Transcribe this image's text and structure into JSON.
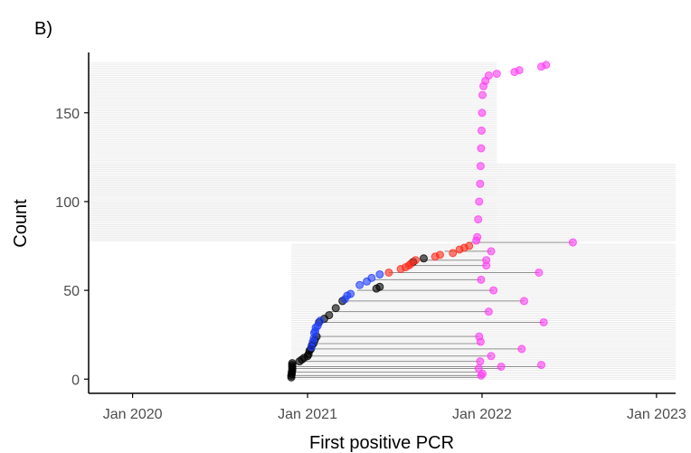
{
  "panel_label": "B)",
  "colors": {
    "black": "#000000",
    "blue": "#1f3fff",
    "red": "#ff2a1a",
    "magenta": "#ff3df4",
    "segment": "#8c8c8c",
    "band": "#ebebeb"
  },
  "chart_data": {
    "type": "scatter",
    "xlabel": "First positive PCR",
    "ylabel": "Count",
    "x_ticks": [
      "Jan 2020",
      "Jan 2021",
      "Jan 2022",
      "Jan 2023"
    ],
    "y_ticks": [
      "0",
      "50",
      "100",
      "150"
    ],
    "xlim": [
      "2019-10-01",
      "2023-02-10"
    ],
    "ylim": [
      -8,
      184
    ],
    "grid": false,
    "legend": "none",
    "series_segments": {
      "description_units": "count index y, from date -> to date (gray horizontal lines)",
      "segments": [
        {
          "y": 1,
          "x_from": "2020-11-28",
          "x_to": "2021-12-30"
        },
        {
          "y": 2,
          "x_from": "2020-11-29",
          "x_to": "2022-01-02"
        },
        {
          "y": 4,
          "x_from": "2020-11-30",
          "x_to": "2021-12-25"
        },
        {
          "y": 6,
          "x_from": "2020-11-30",
          "x_to": "2022-02-10"
        },
        {
          "y": 7,
          "x_from": "2020-11-30",
          "x_to": "2022-05-05"
        },
        {
          "y": 10,
          "x_from": "2020-12-20",
          "x_to": "2021-12-28"
        },
        {
          "y": 13,
          "x_from": "2021-01-01",
          "x_to": "2022-01-20"
        },
        {
          "y": 17,
          "x_from": "2021-01-08",
          "x_to": "2022-03-25"
        },
        {
          "y": 20,
          "x_from": "2021-01-10",
          "x_to": "2021-12-29"
        },
        {
          "y": 24,
          "x_from": "2021-01-13",
          "x_to": "2021-12-26"
        },
        {
          "y": 32,
          "x_from": "2021-01-20",
          "x_to": "2022-05-10"
        },
        {
          "y": 38,
          "x_from": "2021-02-15",
          "x_to": "2022-01-15"
        },
        {
          "y": 44,
          "x_from": "2021-03-15",
          "x_to": "2022-03-30"
        },
        {
          "y": 50,
          "x_from": "2021-04-15",
          "x_to": "2022-01-25"
        },
        {
          "y": 56,
          "x_from": "2021-05-20",
          "x_to": "2021-12-30"
        },
        {
          "y": 60,
          "x_from": "2021-06-20",
          "x_to": "2022-04-30"
        },
        {
          "y": 64,
          "x_from": "2021-07-25",
          "x_to": "2022-01-10"
        },
        {
          "y": 67,
          "x_from": "2021-08-25",
          "x_to": "2022-01-10"
        },
        {
          "y": 72,
          "x_from": "2021-10-15",
          "x_to": "2022-01-20"
        },
        {
          "y": 77,
          "x_from": "2021-12-01",
          "x_to": "2022-07-10"
        }
      ]
    },
    "series": [
      {
        "name": "",
        "color": "black",
        "x": [
          "2020-11-28",
          "2020-11-28",
          "2020-11-29",
          "2020-11-29",
          "2020-11-30",
          "2020-11-30",
          "2020-11-30",
          "2020-11-30",
          "2020-11-30",
          "2020-12-15",
          "2020-12-20",
          "2020-12-25",
          "2021-01-01",
          "2021-01-03",
          "2021-01-05",
          "2021-01-08",
          "2021-01-10",
          "2021-01-13",
          "2021-01-16",
          "2021-01-20",
          "2021-01-25",
          "2021-02-05",
          "2021-02-15",
          "2021-03-01",
          "2021-03-15",
          "2021-05-25",
          "2021-06-01",
          "2021-08-10",
          "2021-09-01"
        ],
        "y": [
          1,
          2,
          3,
          4,
          5,
          6,
          7,
          8,
          9,
          10,
          11,
          12,
          13,
          14,
          16,
          17,
          19,
          20,
          22,
          24,
          32,
          34,
          36,
          40,
          44,
          51,
          52,
          66,
          68
        ]
      },
      {
        "name": "",
        "color": "blue",
        "x": [
          "2021-01-09",
          "2021-01-12",
          "2021-01-14",
          "2021-01-15",
          "2021-01-17",
          "2021-01-18",
          "2021-01-22",
          "2021-01-28",
          "2021-03-20",
          "2021-03-25",
          "2021-04-01",
          "2021-04-20",
          "2021-05-05",
          "2021-05-15",
          "2021-06-01"
        ],
        "y": [
          18,
          21,
          23,
          26,
          27,
          29,
          30,
          33,
          45,
          47,
          48,
          53,
          55,
          57,
          59
        ]
      },
      {
        "name": "",
        "color": "red",
        "x": [
          "2021-06-20",
          "2021-07-15",
          "2021-07-25",
          "2021-08-01",
          "2021-08-05",
          "2021-08-15",
          "2021-09-25",
          "2021-10-05",
          "2021-11-01",
          "2021-11-15",
          "2021-11-25",
          "2021-12-05"
        ],
        "y": [
          60,
          62,
          63,
          64,
          65,
          67,
          69,
          70,
          71,
          73,
          74,
          75
        ]
      },
      {
        "name": "",
        "color": "magenta",
        "x": [
          "2021-12-30",
          "2022-01-02",
          "2021-12-25",
          "2022-02-10",
          "2022-05-05",
          "2021-12-28",
          "2022-01-20",
          "2022-03-25",
          "2021-12-29",
          "2021-12-26",
          "2022-05-10",
          "2022-01-15",
          "2022-03-30",
          "2022-01-25",
          "2021-12-30",
          "2022-04-30",
          "2022-01-10",
          "2022-01-10",
          "2022-01-20",
          "2022-07-10",
          "2021-12-20",
          "2021-12-22",
          "2021-12-24",
          "2021-12-26",
          "2021-12-28",
          "2021-12-29",
          "2021-12-30",
          "2021-12-31",
          "2022-01-01",
          "2022-01-02",
          "2022-01-04",
          "2022-01-08",
          "2022-01-15",
          "2022-02-01",
          "2022-03-10",
          "2022-03-20",
          "2022-05-05",
          "2022-05-15"
        ],
        "y": [
          2,
          3,
          6,
          7,
          8,
          10,
          13,
          17,
          21,
          24,
          32,
          38,
          44,
          50,
          56,
          60,
          64,
          67,
          72,
          77,
          78,
          80,
          90,
          100,
          110,
          120,
          130,
          140,
          150,
          160,
          165,
          168,
          171,
          172,
          173,
          174,
          176,
          177
        ]
      }
    ]
  }
}
